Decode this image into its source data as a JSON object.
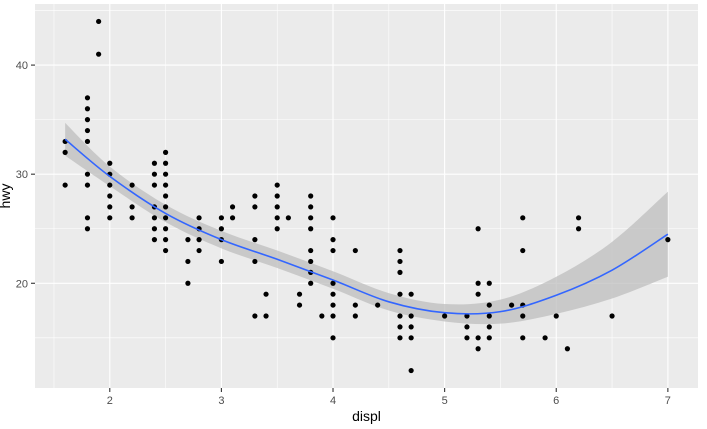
{
  "chart_data": {
    "type": "scatter",
    "title": "",
    "xlabel": "displ",
    "ylabel": "hwy",
    "xlim": [
      1.33,
      7.27
    ],
    "ylim": [
      10.4,
      45.6
    ],
    "x_ticks": [
      2,
      3,
      4,
      5,
      6,
      7
    ],
    "y_ticks": [
      20,
      30,
      40
    ],
    "x_tick_labels": [
      "2",
      "3",
      "4",
      "5",
      "6",
      "7"
    ],
    "y_tick_labels": [
      "20",
      "30",
      "40"
    ],
    "grid": true,
    "legend": "none",
    "colors": {
      "panel": "#ebebeb",
      "grid": "#ffffff",
      "point": "#000000",
      "smooth": "#3366ff",
      "ribbon": "#bdbdbd"
    },
    "points": [
      [
        1.6,
        33
      ],
      [
        1.6,
        32
      ],
      [
        1.6,
        29
      ],
      [
        1.8,
        37
      ],
      [
        1.8,
        36
      ],
      [
        1.8,
        35
      ],
      [
        1.8,
        34
      ],
      [
        1.8,
        33
      ],
      [
        1.8,
        30
      ],
      [
        1.8,
        29
      ],
      [
        1.8,
        26
      ],
      [
        1.8,
        25
      ],
      [
        1.9,
        44
      ],
      [
        1.9,
        41
      ],
      [
        2.0,
        31
      ],
      [
        2.0,
        30
      ],
      [
        2.0,
        29
      ],
      [
        2.0,
        28
      ],
      [
        2.0,
        27
      ],
      [
        2.0,
        26
      ],
      [
        2.2,
        29
      ],
      [
        2.2,
        27
      ],
      [
        2.2,
        26
      ],
      [
        2.4,
        31
      ],
      [
        2.4,
        30
      ],
      [
        2.4,
        29
      ],
      [
        2.4,
        27
      ],
      [
        2.4,
        26
      ],
      [
        2.4,
        25
      ],
      [
        2.4,
        24
      ],
      [
        2.5,
        32
      ],
      [
        2.5,
        31
      ],
      [
        2.5,
        30
      ],
      [
        2.5,
        29
      ],
      [
        2.5,
        28
      ],
      [
        2.5,
        27
      ],
      [
        2.5,
        26
      ],
      [
        2.5,
        25
      ],
      [
        2.5,
        24
      ],
      [
        2.5,
        23
      ],
      [
        2.7,
        24
      ],
      [
        2.7,
        22
      ],
      [
        2.7,
        20
      ],
      [
        2.8,
        26
      ],
      [
        2.8,
        25
      ],
      [
        2.8,
        24
      ],
      [
        2.8,
        23
      ],
      [
        3.0,
        26
      ],
      [
        3.0,
        25
      ],
      [
        3.0,
        24
      ],
      [
        3.0,
        22
      ],
      [
        3.1,
        27
      ],
      [
        3.1,
        26
      ],
      [
        3.3,
        28
      ],
      [
        3.3,
        27
      ],
      [
        3.3,
        24
      ],
      [
        3.3,
        22
      ],
      [
        3.3,
        17
      ],
      [
        3.4,
        19
      ],
      [
        3.4,
        17
      ],
      [
        3.5,
        29
      ],
      [
        3.5,
        28
      ],
      [
        3.5,
        27
      ],
      [
        3.5,
        26
      ],
      [
        3.5,
        25
      ],
      [
        3.6,
        26
      ],
      [
        3.7,
        19
      ],
      [
        3.7,
        18
      ],
      [
        3.8,
        28
      ],
      [
        3.8,
        27
      ],
      [
        3.8,
        26
      ],
      [
        3.8,
        25
      ],
      [
        3.8,
        23
      ],
      [
        3.8,
        22
      ],
      [
        3.8,
        21
      ],
      [
        3.8,
        20
      ],
      [
        3.9,
        17
      ],
      [
        4.0,
        26
      ],
      [
        4.0,
        24
      ],
      [
        4.0,
        23
      ],
      [
        4.0,
        20
      ],
      [
        4.0,
        19
      ],
      [
        4.0,
        18
      ],
      [
        4.0,
        17
      ],
      [
        4.0,
        15
      ],
      [
        4.2,
        23
      ],
      [
        4.2,
        18
      ],
      [
        4.2,
        17
      ],
      [
        4.4,
        18
      ],
      [
        4.6,
        23
      ],
      [
        4.6,
        22
      ],
      [
        4.6,
        21
      ],
      [
        4.6,
        19
      ],
      [
        4.6,
        17
      ],
      [
        4.6,
        16
      ],
      [
        4.6,
        15
      ],
      [
        4.7,
        19
      ],
      [
        4.7,
        17
      ],
      [
        4.7,
        16
      ],
      [
        4.7,
        15
      ],
      [
        4.7,
        12
      ],
      [
        5.0,
        17
      ],
      [
        5.2,
        17
      ],
      [
        5.2,
        16
      ],
      [
        5.2,
        15
      ],
      [
        5.3,
        25
      ],
      [
        5.3,
        20
      ],
      [
        5.3,
        19
      ],
      [
        5.3,
        15
      ],
      [
        5.3,
        14
      ],
      [
        5.4,
        20
      ],
      [
        5.4,
        18
      ],
      [
        5.4,
        17
      ],
      [
        5.4,
        16
      ],
      [
        5.4,
        15
      ],
      [
        5.6,
        18
      ],
      [
        5.7,
        26
      ],
      [
        5.7,
        23
      ],
      [
        5.7,
        18
      ],
      [
        5.7,
        17
      ],
      [
        5.7,
        15
      ],
      [
        5.9,
        15
      ],
      [
        6.0,
        17
      ],
      [
        6.1,
        14
      ],
      [
        6.2,
        26
      ],
      [
        6.2,
        25
      ],
      [
        6.5,
        17
      ],
      [
        7.0,
        24
      ]
    ],
    "smooth": {
      "x": [
        1.6,
        2.0,
        2.5,
        3.0,
        3.5,
        4.0,
        4.5,
        5.0,
        5.5,
        6.0,
        6.5,
        7.0
      ],
      "y": [
        33.2,
        29.8,
        26.4,
        24.0,
        22.2,
        20.3,
        18.3,
        17.3,
        17.4,
        18.9,
        21.2,
        24.5
      ],
      "lower": [
        31.7,
        28.9,
        25.6,
        23.2,
        21.4,
        19.5,
        17.5,
        16.5,
        16.3,
        17.2,
        18.6,
        20.6
      ],
      "upper": [
        34.7,
        30.7,
        27.2,
        24.8,
        23.0,
        21.1,
        19.1,
        18.1,
        18.5,
        20.6,
        23.8,
        28.4
      ]
    }
  }
}
